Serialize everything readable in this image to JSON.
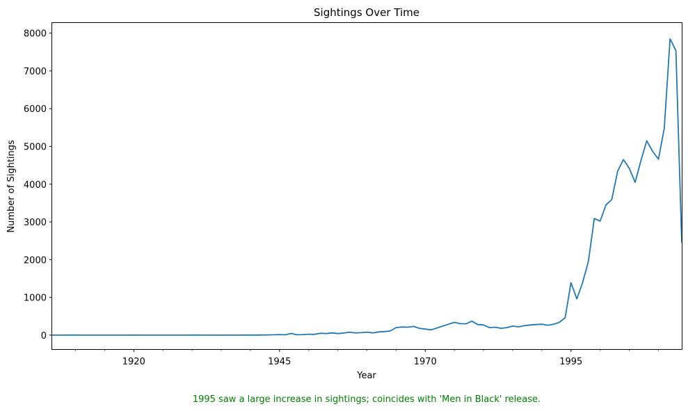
{
  "chart_data": {
    "type": "line",
    "title": "Sightings Over Time",
    "xlabel": "Year",
    "ylabel": "Number of Sightings",
    "xlim": [
      1906,
      2014
    ],
    "ylim": [
      -370,
      8270
    ],
    "x_ticks": [
      1920,
      1945,
      1970,
      1995
    ],
    "x_minor_ticks": [
      1910,
      1915,
      1925,
      1930,
      1935,
      1940,
      1950,
      1955,
      1960,
      1965,
      1975,
      1980,
      1985,
      1990,
      2000,
      2005,
      2010
    ],
    "y_ticks": [
      0,
      1000,
      2000,
      3000,
      4000,
      5000,
      6000,
      7000,
      8000
    ],
    "grid": false,
    "legend": "none",
    "annotation": "1995 saw a large increase in sightings; coincides with 'Men in Black' release.",
    "colors": {
      "line": "#1f77b4",
      "annotation": "#008000"
    },
    "series": [
      {
        "x": [
          1906,
          1907,
          1908,
          1909,
          1910,
          1911,
          1912,
          1913,
          1914,
          1915,
          1916,
          1917,
          1918,
          1919,
          1920,
          1921,
          1922,
          1923,
          1924,
          1925,
          1926,
          1927,
          1928,
          1929,
          1930,
          1931,
          1932,
          1933,
          1934,
          1935,
          1936,
          1937,
          1938,
          1939,
          1940,
          1941,
          1942,
          1943,
          1944,
          1945,
          1946,
          1947,
          1948,
          1949,
          1950,
          1951,
          1952,
          1953,
          1954,
          1955,
          1956,
          1957,
          1958,
          1959,
          1960,
          1961,
          1962,
          1963,
          1964,
          1965,
          1966,
          1967,
          1968,
          1969,
          1970,
          1971,
          1972,
          1973,
          1974,
          1975,
          1976,
          1977,
          1978,
          1979,
          1980,
          1981,
          1982,
          1983,
          1984,
          1985,
          1986,
          1987,
          1988,
          1989,
          1990,
          1991,
          1992,
          1993,
          1994,
          1995,
          1996,
          1997,
          1998,
          1999,
          2000,
          2001,
          2002,
          2003,
          2004,
          2005,
          2006,
          2007,
          2008,
          2009,
          2010,
          2011,
          2012,
          2013,
          2014
        ],
        "values": [
          1,
          1,
          1,
          2,
          2,
          1,
          1,
          1,
          1,
          1,
          1,
          1,
          1,
          1,
          2,
          1,
          1,
          1,
          1,
          1,
          1,
          1,
          1,
          1,
          2,
          2,
          1,
          1,
          1,
          1,
          2,
          1,
          1,
          2,
          2,
          3,
          4,
          6,
          10,
          15,
          10,
          45,
          10,
          15,
          25,
          20,
          50,
          40,
          60,
          40,
          55,
          80,
          60,
          65,
          80,
          60,
          85,
          95,
          110,
          200,
          215,
          210,
          230,
          180,
          160,
          140,
          190,
          240,
          290,
          340,
          305,
          300,
          370,
          280,
          270,
          200,
          210,
          180,
          200,
          240,
          220,
          250,
          270,
          280,
          290,
          260,
          285,
          340,
          460,
          1390,
          960,
          1390,
          1960,
          3090,
          3020,
          3450,
          3590,
          4340,
          4650,
          4420,
          4050,
          4620,
          5150,
          4870,
          4660,
          5480,
          7850,
          7540,
          2450
        ]
      }
    ]
  }
}
